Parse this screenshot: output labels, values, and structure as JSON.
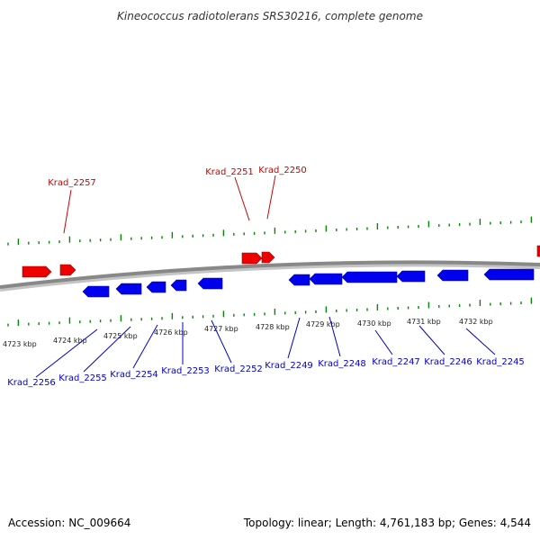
{
  "title": "Kineococcus radiotolerans SRS30216, complete genome",
  "footer": {
    "accession": "Accession: NC_009664",
    "stats": "Topology: linear; Length: 4,761,183 bp; Genes: 4,544"
  },
  "colors": {
    "forward_gene": "#ee0000",
    "reverse_gene": "#0000ee",
    "forward_label": "#cc0000",
    "reverse_label": "#0000cc",
    "tick": "#008800",
    "backbone": "#888888"
  },
  "kbp_labels": [
    "4723 kbp",
    "4724 kbp",
    "4725 kbp",
    "4726 kbp",
    "4727 kbp",
    "4728 kbp",
    "4729 kbp",
    "4730 kbp",
    "4731 kbp",
    "4732 kbp"
  ],
  "forward_genes": [
    "Krad_2257",
    "Krad_2251",
    "Krad_2250"
  ],
  "reverse_genes": [
    "Krad_2256",
    "Krad_2255",
    "Krad_2254",
    "Krad_2253",
    "Krad_2252",
    "Krad_2249",
    "Krad_2248",
    "Krad_2247",
    "Krad_2246",
    "Krad_2245"
  ]
}
